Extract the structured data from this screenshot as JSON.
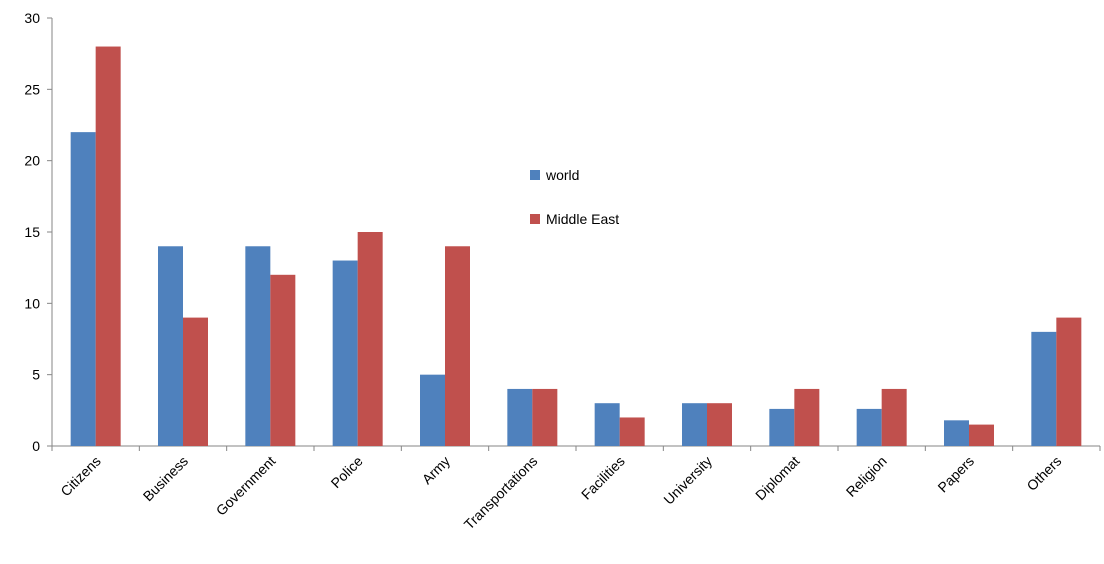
{
  "chart_data": {
    "type": "bar",
    "categories": [
      "Citizens",
      "Business",
      "Government",
      "Police",
      "Army",
      "Transportations",
      "Facilities",
      "University",
      "Diplomat",
      "Religion",
      "Papers",
      "Others"
    ],
    "series": [
      {
        "name": "world",
        "color": "#4F81BD",
        "values": [
          22,
          14,
          14,
          13,
          5,
          4,
          3,
          3,
          2.6,
          2.6,
          1.8,
          8
        ]
      },
      {
        "name": "Middle East",
        "color": "#C0504D",
        "values": [
          28,
          9,
          12,
          15,
          14,
          4,
          2,
          3,
          4,
          4,
          1.5,
          9
        ]
      }
    ],
    "title": "",
    "xlabel": "",
    "ylabel": "",
    "ylim": [
      0,
      30
    ],
    "yticks": [
      "0",
      "5",
      "10",
      "15",
      "20",
      "25",
      "30"
    ],
    "grid": false,
    "legend_position": "center"
  }
}
